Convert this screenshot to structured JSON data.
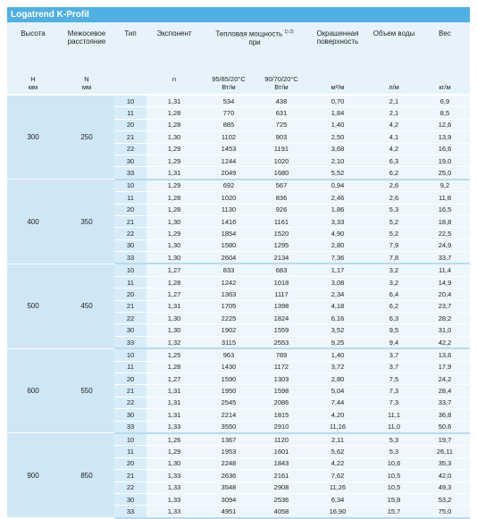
{
  "title": "Logatrend K-Profil",
  "header": {
    "height": [
      "Высота",
      "H",
      "мм"
    ],
    "spacing": [
      "Межосевое расстояние",
      "N",
      "мм"
    ],
    "type": "Тип",
    "exponent": [
      "Экспонент",
      "n"
    ],
    "power": {
      "label": "Тепловая мощность",
      "note": "1) 2)",
      "sub": "при",
      "t1": [
        "95/85/20°C",
        "Вт/м"
      ],
      "t2": [
        "90/70/20°C",
        "Вт/м"
      ]
    },
    "surface": [
      "Окрашенная поверхность",
      "м²/м"
    ],
    "water": [
      "Объем воды",
      "л/м"
    ],
    "weight": [
      "Вес",
      "кг/м"
    ]
  },
  "groups": [
    {
      "height": "300",
      "spacing": "250",
      "rows": [
        [
          "10",
          "1,31",
          "534",
          "438",
          "0,70",
          "2,1",
          "6,9"
        ],
        [
          "11",
          "1,28",
          "770",
          "631",
          "1,84",
          "2,1",
          "8,5"
        ],
        [
          "20",
          "1,28",
          "885",
          "725",
          "1,40",
          "4,2",
          "12,6"
        ],
        [
          "21",
          "1,30",
          "1102",
          "903",
          "2,50",
          "4,1",
          "13,9"
        ],
        [
          "22",
          "1,29",
          "1453",
          "1191",
          "3,68",
          "4,2",
          "16,6"
        ],
        [
          "30",
          "1,29",
          "1244",
          "1020",
          "2,10",
          "6,3",
          "19,0"
        ],
        [
          "33",
          "1,31",
          "2049",
          "1680",
          "5,52",
          "6,2",
          "25,0"
        ]
      ]
    },
    {
      "height": "400",
      "spacing": "350",
      "rows": [
        [
          "10",
          "1,29",
          "692",
          "567",
          "0,94",
          "2,6",
          "9,2"
        ],
        [
          "11",
          "1,28",
          "1020",
          "836",
          "2,46",
          "2,6",
          "11,8"
        ],
        [
          "20",
          "1,28",
          "1130",
          "926",
          "1,86",
          "5,3",
          "16,5"
        ],
        [
          "21",
          "1,30",
          "1416",
          "1161",
          "3,33",
          "5,2",
          "18,8"
        ],
        [
          "22",
          "1,29",
          "1854",
          "1520",
          "4,90",
          "5,2",
          "22,5"
        ],
        [
          "30",
          "1,30",
          "1580",
          "1295",
          "2,80",
          "7,9",
          "24,9"
        ],
        [
          "33",
          "1,30",
          "2604",
          "2134",
          "7,36",
          "7,8",
          "33,7"
        ]
      ]
    },
    {
      "height": "500",
      "spacing": "450",
      "rows": [
        [
          "10",
          "1,27",
          "833",
          "683",
          "1,17",
          "3,2",
          "11,4"
        ],
        [
          "11",
          "1,28",
          "1242",
          "1018",
          "3,08",
          "3,2",
          "14,9"
        ],
        [
          "20",
          "1,27",
          "1363",
          "1117",
          "2,34",
          "6,4",
          "20,4"
        ],
        [
          "21",
          "1,31",
          "1705",
          "1398",
          "4,18",
          "6,2",
          "23,7"
        ],
        [
          "22",
          "1,30",
          "2225",
          "1824",
          "6,16",
          "6,3",
          "28,2"
        ],
        [
          "30",
          "1,30",
          "1902",
          "1559",
          "3,52",
          "9,5",
          "31,0"
        ],
        [
          "33",
          "1,32",
          "3115",
          "2553",
          "9,25",
          "9,4",
          "42,2"
        ]
      ]
    },
    {
      "height": "600",
      "spacing": "550",
      "rows": [
        [
          "10",
          "1,25",
          "963",
          "789",
          "1,40",
          "3,7",
          "13,6"
        ],
        [
          "11",
          "1,28",
          "1430",
          "1172",
          "3,72",
          "3,7",
          "17,9"
        ],
        [
          "20",
          "1,27",
          "1590",
          "1303",
          "2,80",
          "7,5",
          "24,2"
        ],
        [
          "21",
          "1,31",
          "1950",
          "1598",
          "5,04",
          "7,3",
          "28,4"
        ],
        [
          "22",
          "1,31",
          "2545",
          "2086",
          "7,44",
          "7,3",
          "33,7"
        ],
        [
          "30",
          "1,31",
          "2214",
          "1815",
          "4,20",
          "11,1",
          "36,8"
        ],
        [
          "33",
          "1,33",
          "3550",
          "2910",
          "11,16",
          "11,0",
          "50,6"
        ]
      ]
    },
    {
      "height": "900",
      "spacing": "850",
      "rows": [
        [
          "10",
          "1,26",
          "1367",
          "1120",
          "2,11",
          "5,3",
          "19,7"
        ],
        [
          "11",
          "1,29",
          "1953",
          "1601",
          "5,62",
          "5,3",
          "26,11"
        ],
        [
          "20",
          "1,30",
          "2248",
          "1843",
          "4,22",
          "10,6",
          "35,3"
        ],
        [
          "21",
          "1,33",
          "2636",
          "2161",
          "7,62",
          "10,5",
          "42,0"
        ],
        [
          "22",
          "1,33",
          "3548",
          "2908",
          "11,26",
          "10,5",
          "49,3"
        ],
        [
          "30",
          "1,33",
          "3094",
          "2536",
          "6,34",
          "15,8",
          "53,2"
        ],
        [
          "33",
          "1,33",
          "4951",
          "4058",
          "16,90",
          "15,7",
          "75,0"
        ]
      ]
    }
  ]
}
